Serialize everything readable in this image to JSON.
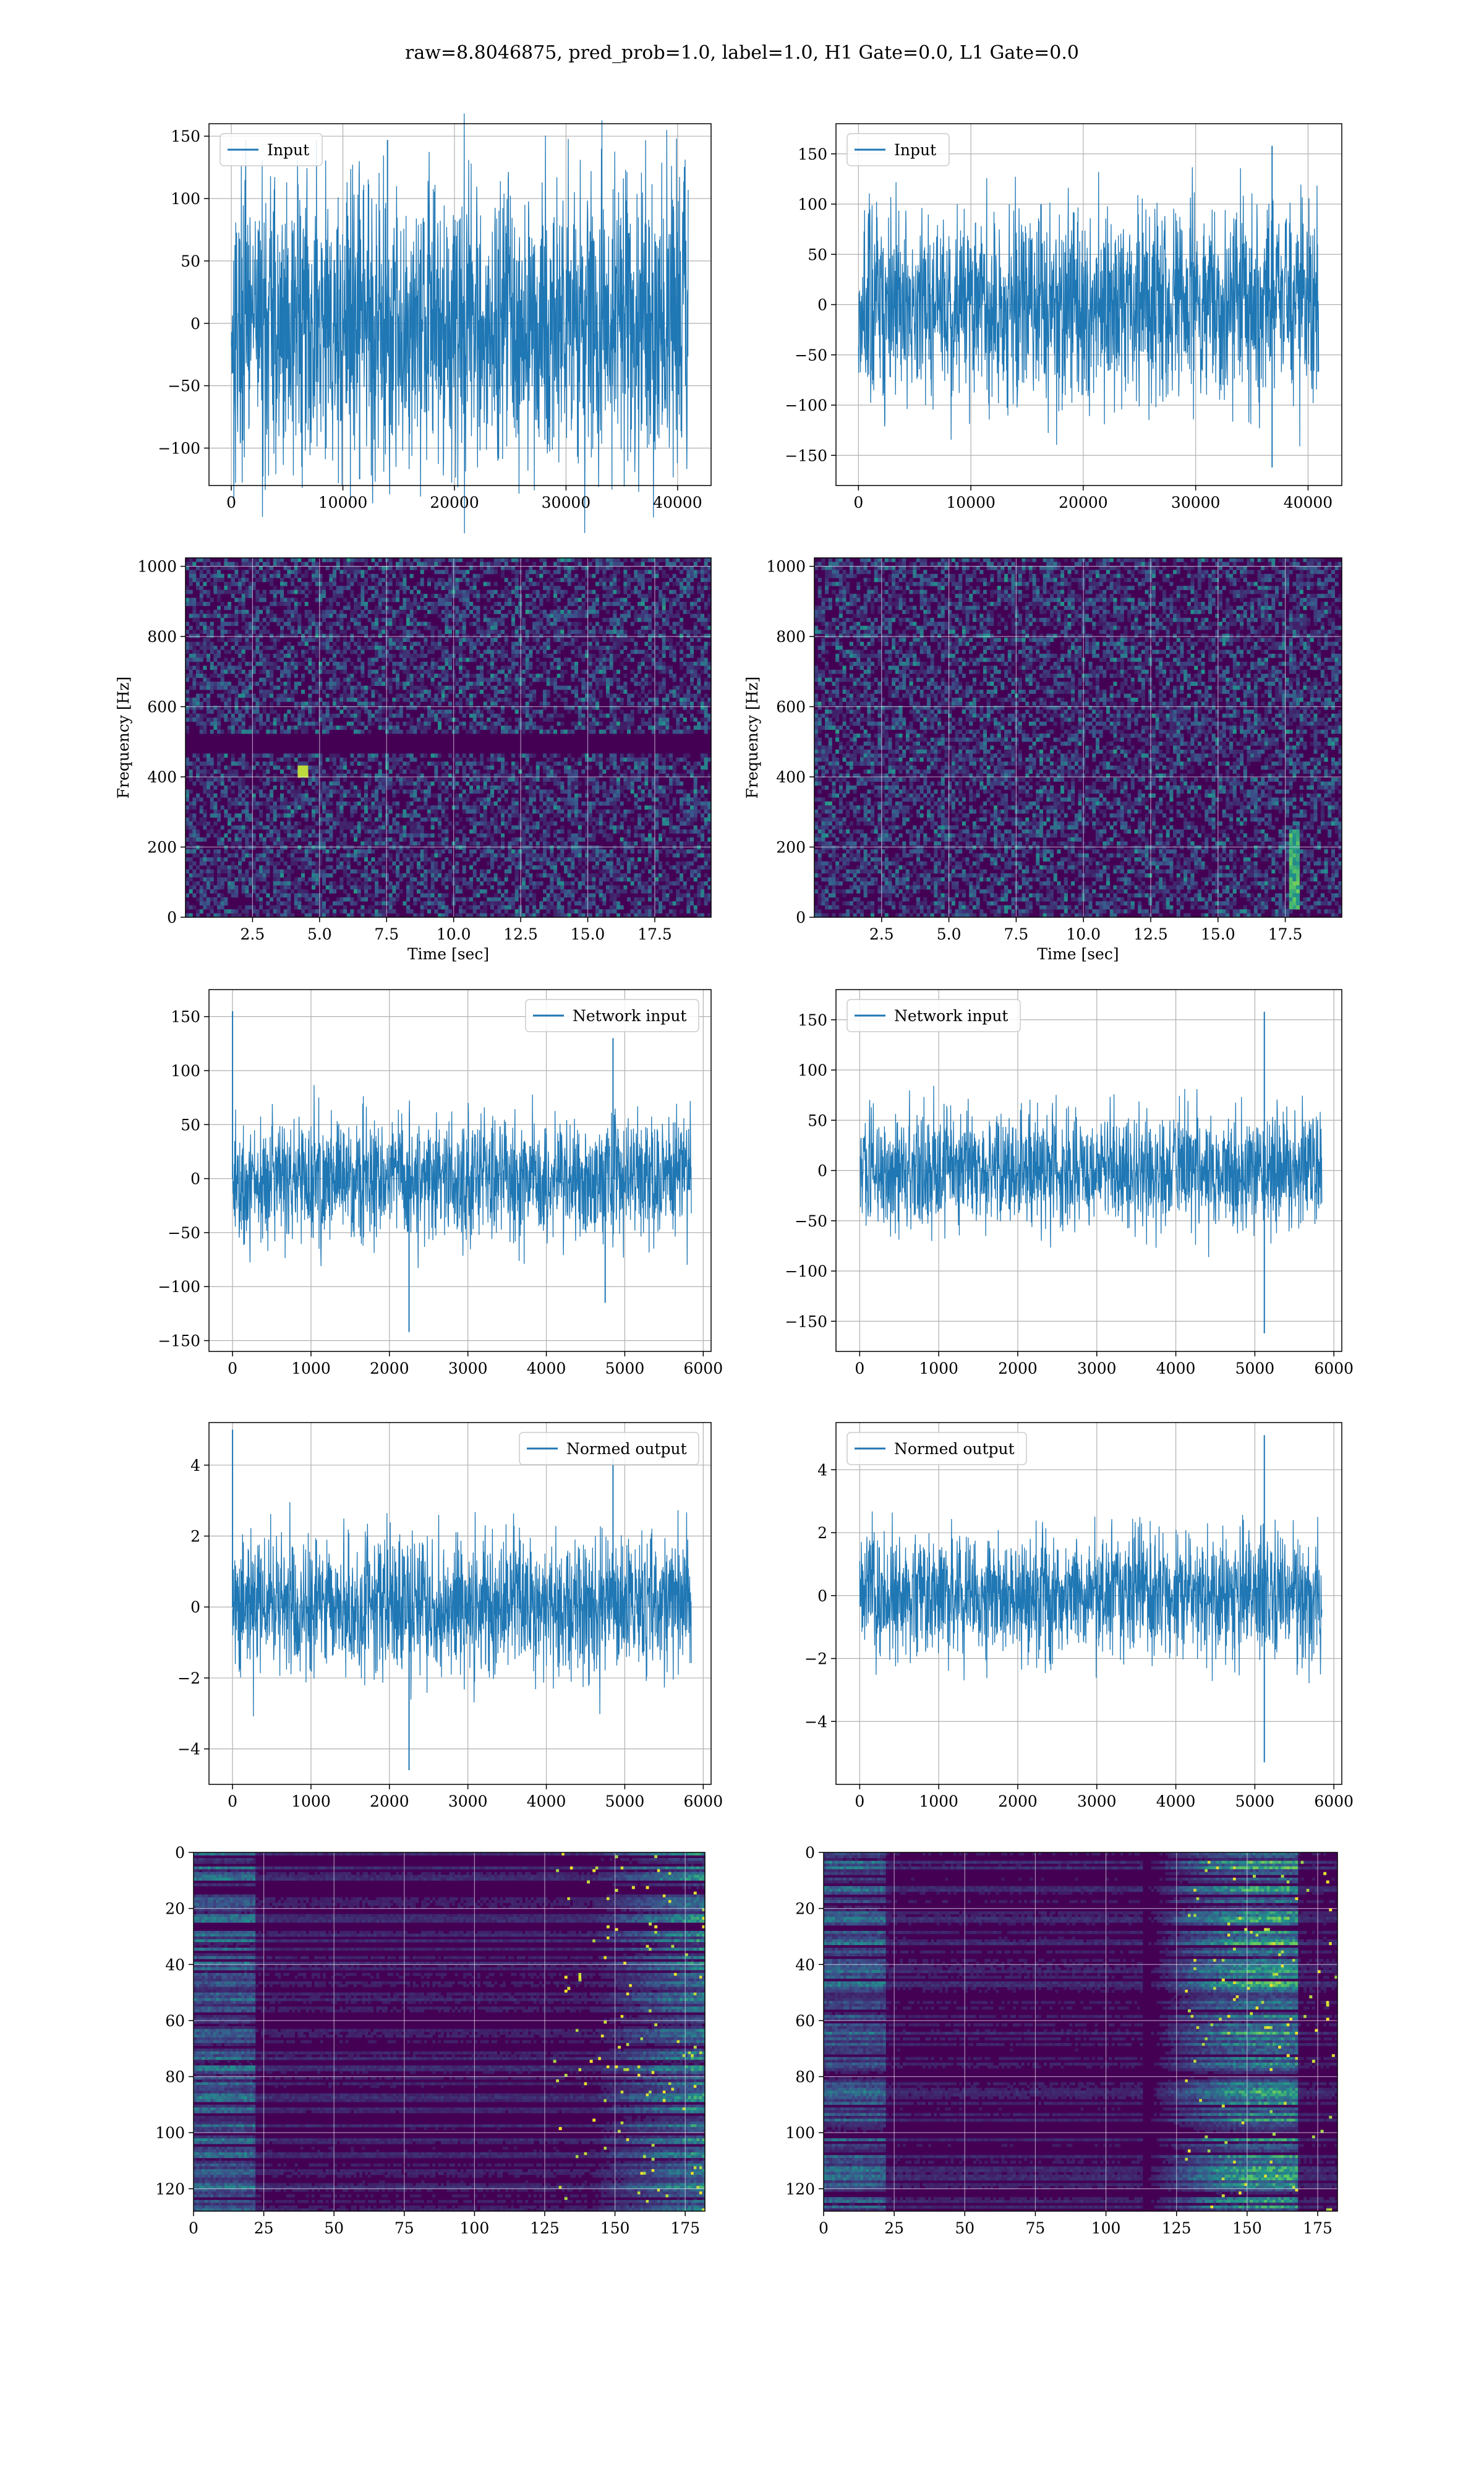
{
  "suptitle": "raw=8.8046875, pred_prob=1.0, label=1.0, H1 Gate=0.0, L1 Gate=0.0",
  "colors": {
    "line": "#1f77b4",
    "grid": "#b0b0b0",
    "viridis_low": "#440154",
    "viridis_mid": "#21918c",
    "viridis_high": "#fde725"
  },
  "chart_data": [
    {
      "type": "line",
      "panel": "row1-left",
      "series": [
        {
          "name": "Input",
          "amplitude": 60,
          "spikes": [
            {
              "x": 14000,
              "y": 147
            },
            {
              "x": 11500,
              "y": -125
            }
          ]
        }
      ],
      "legend": "top-left",
      "xlim": [
        -2000,
        43000
      ],
      "ylim": [
        -130,
        160
      ],
      "xticks": [
        0,
        10000,
        20000,
        30000,
        40000
      ],
      "yticks": [
        150,
        100,
        50,
        0,
        -50,
        -100
      ],
      "data_x_range": [
        0,
        40960
      ],
      "grid": true
    },
    {
      "type": "line",
      "panel": "row1-right",
      "series": [
        {
          "name": "Input",
          "amplitude": 50,
          "spikes": [
            {
              "x": 36800,
              "y": 158
            },
            {
              "x": 36800,
              "y": -162
            }
          ]
        }
      ],
      "legend": "top-left",
      "xlim": [
        -2000,
        43000
      ],
      "ylim": [
        -180,
        180
      ],
      "xticks": [
        0,
        10000,
        20000,
        30000,
        40000
      ],
      "yticks": [
        150,
        100,
        50,
        0,
        -50,
        -100,
        -150
      ],
      "data_x_range": [
        0,
        40960
      ],
      "grid": true
    },
    {
      "type": "heatmap",
      "panel": "row2-left",
      "xlabel": "Time [sec]",
      "ylabel": "Frequency [Hz]",
      "xlim": [
        0,
        19.6
      ],
      "ylim": [
        0,
        1024
      ],
      "xticks": [
        "2.5",
        "5.0",
        "7.5",
        "10.0",
        "12.5",
        "15.0",
        "17.5"
      ],
      "yticks": [
        "0",
        "200",
        "400",
        "600",
        "800",
        "1000"
      ],
      "features": [
        "dark horizontal band near 500 Hz",
        "hot spot near 4.3 s, 420 Hz"
      ],
      "grid": true
    },
    {
      "type": "heatmap",
      "panel": "row2-right",
      "xlabel": "Time [sec]",
      "ylabel": "Frequency [Hz]",
      "xlim": [
        0,
        19.6
      ],
      "ylim": [
        0,
        1024
      ],
      "xticks": [
        "2.5",
        "5.0",
        "7.5",
        "10.0",
        "12.5",
        "15.0",
        "17.5"
      ],
      "yticks": [
        "0",
        "200",
        "400",
        "600",
        "800",
        "1000"
      ],
      "features": [
        "chirp-like vertical track near 18 s, 30-250 Hz"
      ],
      "grid": true
    },
    {
      "type": "line",
      "panel": "row3-left",
      "series": [
        {
          "name": "Network input",
          "amplitude": 30,
          "spikes": [
            {
              "x": 0,
              "y": 155
            },
            {
              "x": 2250,
              "y": -142
            },
            {
              "x": 4850,
              "y": 130
            },
            {
              "x": 4750,
              "y": -115
            }
          ]
        }
      ],
      "legend": "top-right",
      "xlim": [
        -300,
        6100
      ],
      "ylim": [
        -160,
        175
      ],
      "xticks": [
        0,
        1000,
        2000,
        3000,
        4000,
        5000,
        6000
      ],
      "yticks": [
        150,
        100,
        50,
        0,
        -50,
        -100,
        -150
      ],
      "data_x_range": [
        0,
        5850
      ],
      "grid": true
    },
    {
      "type": "line",
      "panel": "row3-right",
      "series": [
        {
          "name": "Network input",
          "amplitude": 30,
          "spikes": [
            {
              "x": 5120,
              "y": 158
            },
            {
              "x": 5120,
              "y": -162
            }
          ]
        }
      ],
      "legend": "top-left",
      "xlim": [
        -300,
        6100
      ],
      "ylim": [
        -180,
        180
      ],
      "xticks": [
        0,
        1000,
        2000,
        3000,
        4000,
        5000,
        6000
      ],
      "yticks": [
        150,
        100,
        50,
        0,
        -50,
        -100,
        -150
      ],
      "data_x_range": [
        0,
        5850
      ],
      "grid": true
    },
    {
      "type": "line",
      "panel": "row4-left",
      "series": [
        {
          "name": "Normed output",
          "amplitude": 1.0,
          "spikes": [
            {
              "x": 0,
              "y": 5.0
            },
            {
              "x": 2250,
              "y": -4.6
            },
            {
              "x": 4850,
              "y": 4.2
            }
          ]
        }
      ],
      "legend": "top-right",
      "xlim": [
        -300,
        6100
      ],
      "ylim": [
        -5.0,
        5.2
      ],
      "xticks": [
        0,
        1000,
        2000,
        3000,
        4000,
        5000,
        6000
      ],
      "yticks": [
        4,
        2,
        0,
        -2,
        -4
      ],
      "data_x_range": [
        0,
        5850
      ],
      "grid": true
    },
    {
      "type": "line",
      "panel": "row4-right",
      "series": [
        {
          "name": "Normed output",
          "amplitude": 1.0,
          "spikes": [
            {
              "x": 5120,
              "y": 5.1
            },
            {
              "x": 5120,
              "y": -5.3
            }
          ]
        }
      ],
      "legend": "top-left",
      "xlim": [
        -300,
        6100
      ],
      "ylim": [
        -6.0,
        5.5
      ],
      "xticks": [
        0,
        1000,
        2000,
        3000,
        4000,
        5000,
        6000
      ],
      "yticks": [
        4,
        2,
        0,
        -2,
        -4
      ],
      "data_x_range": [
        0,
        5850
      ],
      "grid": true
    },
    {
      "type": "heatmap",
      "panel": "row5-left",
      "xlim": [
        0,
        182
      ],
      "ylim": [
        128,
        0
      ],
      "xticks": [
        "0",
        "25",
        "50",
        "75",
        "100",
        "125",
        "150",
        "175"
      ],
      "yticks": [
        "0",
        "20",
        "40",
        "60",
        "80",
        "100",
        "120"
      ],
      "features": [
        "horizontal streaks, bright activity near x 150-180"
      ],
      "grid": true
    },
    {
      "type": "heatmap",
      "panel": "row5-right",
      "xlim": [
        0,
        182
      ],
      "ylim": [
        128,
        0
      ],
      "xticks": [
        "0",
        "25",
        "50",
        "75",
        "100",
        "125",
        "150",
        "175"
      ],
      "yticks": [
        "0",
        "20",
        "40",
        "60",
        "80",
        "100",
        "120"
      ],
      "features": [
        "horizontal streaks, bright activity near x 125-165"
      ],
      "grid": true
    }
  ]
}
